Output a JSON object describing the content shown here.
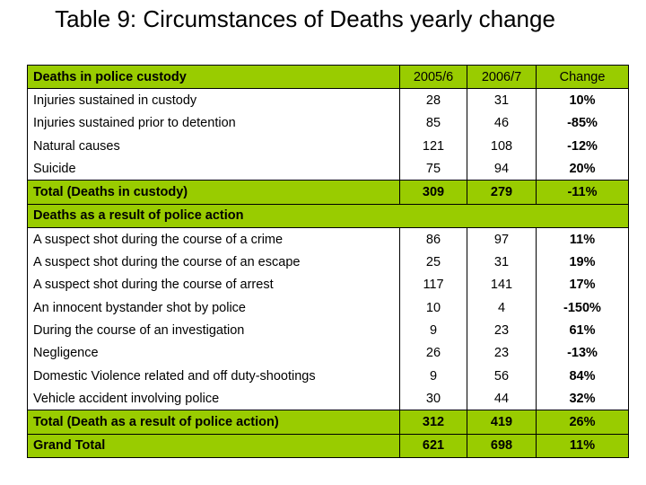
{
  "title": "Table 9: Circumstances of Deaths yearly change",
  "table": {
    "header": [
      "Deaths in police custody",
      "2005/6",
      "2006/7",
      "Change"
    ],
    "rows": [
      [
        "Injuries sustained in custody",
        "28",
        "31",
        "10%"
      ],
      [
        "Injuries sustained prior to detention",
        "85",
        "46",
        "-85%"
      ],
      [
        "Natural causes",
        "121",
        "108",
        "-12%"
      ],
      [
        "Suicide",
        "75",
        "94",
        "20%"
      ],
      [
        "Total (Deaths in custody)",
        "309",
        "279",
        "-11%"
      ],
      [
        "Deaths as a result of police action"
      ],
      [
        "A suspect shot during the course of a crime",
        "86",
        "97",
        "11%"
      ],
      [
        "A suspect shot during the course of an escape",
        "25",
        "31",
        "19%"
      ],
      [
        "A suspect shot during the course of arrest",
        "117",
        "141",
        "17%"
      ],
      [
        "An innocent bystander shot by police",
        "10",
        "4",
        "-150%"
      ],
      [
        "During the course of an investigation",
        "9",
        "23",
        "61%"
      ],
      [
        "Negligence",
        "26",
        "23",
        "-13%"
      ],
      [
        "Domestic Violence related  and off duty-shootings",
        "9",
        "56",
        "84%"
      ],
      [
        "Vehicle accident involving police",
        "30",
        "44",
        "32%"
      ],
      [
        "Total (Death as a result of police action)",
        "312",
        "419",
        "26%"
      ],
      [
        "Grand Total",
        "621",
        "698",
        "11%"
      ]
    ]
  }
}
